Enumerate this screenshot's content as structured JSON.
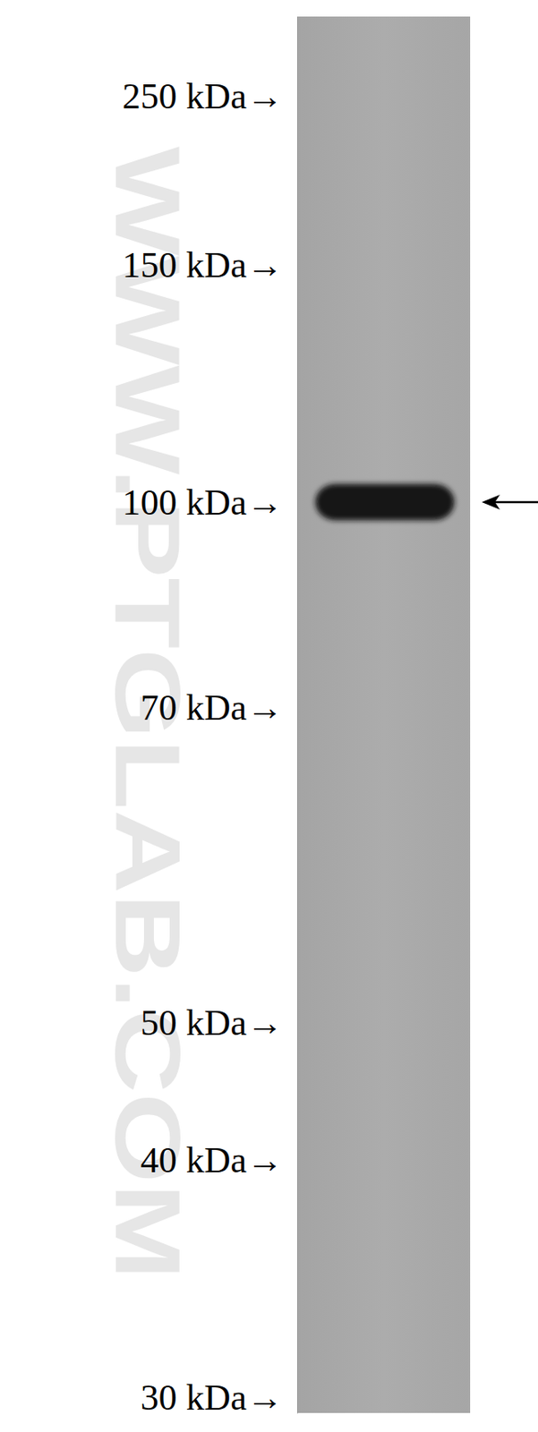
{
  "chart_data": {
    "type": "blot",
    "log": "y",
    "ylim": [
      320,
      29.4
    ],
    "yticks": [
      {
        "value": 250,
        "label": "250 kDa→"
      },
      {
        "value": 150,
        "label": "150 kDa→"
      },
      {
        "value": 100,
        "label": "100 kDa→"
      },
      {
        "value": 70,
        "label": "70 kDa→"
      },
      {
        "value": 50,
        "label": "50 kDa→"
      },
      {
        "value": 40,
        "label": "40 kDa→"
      },
      {
        "value": 30,
        "label": "30 kDa→"
      }
    ],
    "values": [
      100
    ],
    "annotations": [
      "WWW.PTGLAB.COM"
    ]
  }
}
